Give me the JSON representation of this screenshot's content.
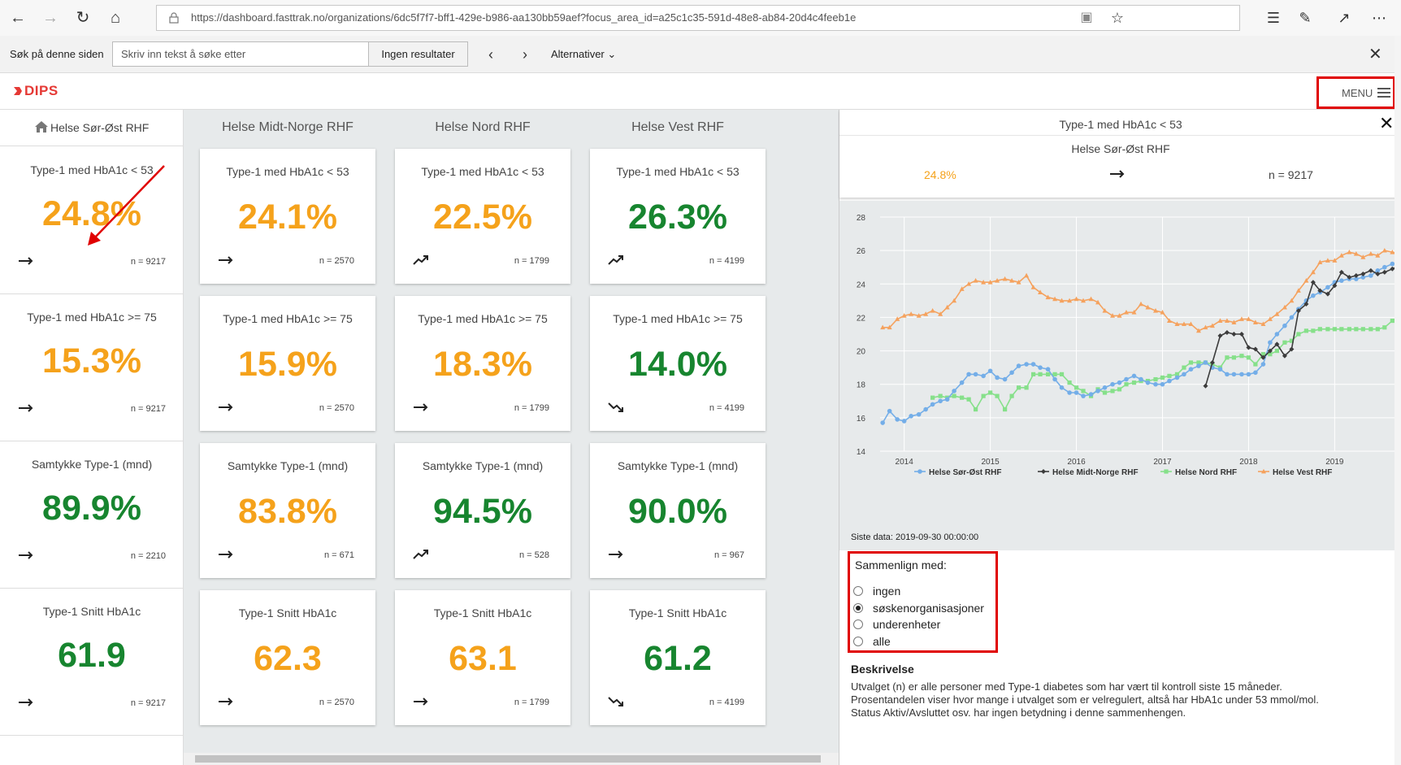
{
  "browser": {
    "url": "https://dashboard.fasttrak.no/organizations/6dc5f7f7-bff1-429e-b986-aa130bb59aef?focus_area_id=a25c1c35-591d-48e8-ab84-20d4c4feeb1e"
  },
  "find_bar": {
    "label": "Søk på denne siden",
    "placeholder": "Skriv inn tekst å søke etter",
    "result": "Ingen resultater",
    "options": "Alternativer"
  },
  "app": {
    "logo": "DIPS",
    "menu_label": "MENU"
  },
  "left_column": {
    "header": "Helse Sør-Øst RHF",
    "cards": [
      {
        "title": "Type-1 med HbA1c < 53",
        "value": "24.8%",
        "n": "n = 9217",
        "trend": "flat",
        "color": "orange"
      },
      {
        "title": "Type-1 med HbA1c >= 75",
        "value": "15.3%",
        "n": "n = 9217",
        "trend": "flat",
        "color": "orange"
      },
      {
        "title": "Samtykke Type-1 (mnd)",
        "value": "89.9%",
        "n": "n = 2210",
        "trend": "flat",
        "color": "green"
      },
      {
        "title": "Type-1 Snitt HbA1c",
        "value": "61.9",
        "n": "n = 9217",
        "trend": "flat",
        "color": "green"
      }
    ]
  },
  "columns": [
    {
      "header": "Helse Midt-Norge RHF",
      "cards": [
        {
          "title": "Type-1 med HbA1c < 53",
          "value": "24.1%",
          "n": "n = 2570",
          "trend": "flat",
          "color": "orange"
        },
        {
          "title": "Type-1 med HbA1c >= 75",
          "value": "15.9%",
          "n": "n = 2570",
          "trend": "flat",
          "color": "orange"
        },
        {
          "title": "Samtykke Type-1 (mnd)",
          "value": "83.8%",
          "n": "n = 671",
          "trend": "flat",
          "color": "orange"
        },
        {
          "title": "Type-1 Snitt HbA1c",
          "value": "62.3",
          "n": "n = 2570",
          "trend": "flat",
          "color": "orange"
        }
      ]
    },
    {
      "header": "Helse Nord RHF",
      "cards": [
        {
          "title": "Type-1 med HbA1c < 53",
          "value": "22.5%",
          "n": "n = 1799",
          "trend": "up",
          "color": "orange"
        },
        {
          "title": "Type-1 med HbA1c >= 75",
          "value": "18.3%",
          "n": "n = 1799",
          "trend": "flat",
          "color": "orange"
        },
        {
          "title": "Samtykke Type-1 (mnd)",
          "value": "94.5%",
          "n": "n = 528",
          "trend": "up",
          "color": "green"
        },
        {
          "title": "Type-1 Snitt HbA1c",
          "value": "63.1",
          "n": "n = 1799",
          "trend": "flat",
          "color": "orange"
        }
      ]
    },
    {
      "header": "Helse Vest RHF",
      "cards": [
        {
          "title": "Type-1 med HbA1c < 53",
          "value": "26.3%",
          "n": "n = 4199",
          "trend": "up",
          "color": "green"
        },
        {
          "title": "Type-1 med HbA1c >= 75",
          "value": "14.0%",
          "n": "n = 4199",
          "trend": "down",
          "color": "green"
        },
        {
          "title": "Samtykke Type-1 (mnd)",
          "value": "90.0%",
          "n": "n = 967",
          "trend": "flat",
          "color": "green"
        },
        {
          "title": "Type-1 Snitt HbA1c",
          "value": "61.2",
          "n": "n = 4199",
          "trend": "down",
          "color": "green"
        }
      ]
    }
  ],
  "detail": {
    "title": "Type-1 med HbA1c < 53",
    "subtitle": "Helse Sør-Øst RHF",
    "value": "24.8%",
    "n": "n = 9217",
    "last_data": "Siste data: 2019-09-30 00:00:00",
    "compare_label": "Sammenlign med:",
    "compare_options": [
      "ingen",
      "søskenorganisasjoner",
      "underenheter",
      "alle"
    ],
    "compare_selected": 1,
    "description_title": "Beskrivelse",
    "description": [
      "Utvalget (n) er alle personer med Type-1 diabetes som har vært til kontroll siste 15 måneder.",
      "Prosentandelen viser hvor mange i utvalget som er velregulert, altså har HbA1c under 53 mmol/mol.",
      "Status Aktiv/Avsluttet osv. har ingen betydning i denne sammenhengen."
    ]
  },
  "colors": {
    "orange": "#f5a21b",
    "green": "#17852f",
    "highlight": "#e00000"
  },
  "chart_data": {
    "type": "line",
    "x_ticks": [
      "2014",
      "2015",
      "2016",
      "2017",
      "2018",
      "2019"
    ],
    "y_ticks": [
      "14",
      "16",
      "18",
      "20",
      "22",
      "24",
      "26",
      "28"
    ],
    "ylim": [
      14,
      28
    ],
    "xlim": [
      2013.72,
      2019.78
    ],
    "grid": true,
    "legend_position": "bottom",
    "series": [
      {
        "name": "Helse Sør-Øst RHF",
        "color": "#74aee8",
        "marker": "circle",
        "x": [
          2013.75,
          2013.83,
          2013.92,
          2014.0,
          2014.08,
          2014.17,
          2014.25,
          2014.33,
          2014.42,
          2014.5,
          2014.58,
          2014.67,
          2014.75,
          2014.83,
          2014.92,
          2015.0,
          2015.08,
          2015.17,
          2015.25,
          2015.33,
          2015.42,
          2015.5,
          2015.58,
          2015.67,
          2015.75,
          2015.83,
          2015.92,
          2016.0,
          2016.08,
          2016.17,
          2016.25,
          2016.33,
          2016.42,
          2016.5,
          2016.58,
          2016.67,
          2016.75,
          2016.83,
          2016.92,
          2017.0,
          2017.08,
          2017.17,
          2017.25,
          2017.33,
          2017.42,
          2017.5,
          2017.58,
          2017.67,
          2017.75,
          2017.83,
          2017.92,
          2018.0,
          2018.08,
          2018.17,
          2018.25,
          2018.33,
          2018.42,
          2018.5,
          2018.58,
          2018.67,
          2018.75,
          2018.83,
          2018.92,
          2019.0,
          2019.08,
          2019.17,
          2019.25,
          2019.33,
          2019.42,
          2019.5,
          2019.58,
          2019.67,
          2019.75
        ],
        "y": [
          15.7,
          16.4,
          15.9,
          15.8,
          16.1,
          16.2,
          16.5,
          16.8,
          17.0,
          17.1,
          17.6,
          18.1,
          18.6,
          18.6,
          18.5,
          18.8,
          18.4,
          18.3,
          18.7,
          19.1,
          19.2,
          19.2,
          19.0,
          18.9,
          18.3,
          17.8,
          17.5,
          17.5,
          17.3,
          17.4,
          17.6,
          17.8,
          18.0,
          18.1,
          18.3,
          18.5,
          18.3,
          18.1,
          18.0,
          18.0,
          18.2,
          18.4,
          18.6,
          18.9,
          19.1,
          19.3,
          19.0,
          18.9,
          18.6,
          18.6,
          18.6,
          18.6,
          18.7,
          19.2,
          20.5,
          21.0,
          21.5,
          22.0,
          22.5,
          23.0,
          23.3,
          23.5,
          23.8,
          24.1,
          24.2,
          24.3,
          24.3,
          24.4,
          24.5,
          24.8,
          25.0,
          25.2,
          25.3
        ]
      },
      {
        "name": "Helse Midt-Norge RHF",
        "color": "#3c3c3c",
        "marker": "diamond",
        "x": [
          2017.5,
          2017.58,
          2017.67,
          2017.75,
          2017.83,
          2017.92,
          2018.0,
          2018.08,
          2018.17,
          2018.25,
          2018.33,
          2018.42,
          2018.5,
          2018.58,
          2018.67,
          2018.75,
          2018.83,
          2018.92,
          2019.0,
          2019.08,
          2019.17,
          2019.25,
          2019.33,
          2019.42,
          2019.5,
          2019.58,
          2019.67,
          2019.75
        ],
        "y": [
          17.9,
          19.3,
          20.9,
          21.1,
          21.0,
          21.0,
          20.2,
          20.1,
          19.6,
          20.0,
          20.4,
          19.7,
          20.1,
          22.4,
          22.8,
          24.1,
          23.6,
          23.4,
          23.9,
          24.7,
          24.4,
          24.5,
          24.6,
          24.8,
          24.6,
          24.7,
          24.9,
          25.1
        ]
      },
      {
        "name": "Helse Nord RHF",
        "color": "#86e08a",
        "marker": "square",
        "x": [
          2014.33,
          2014.42,
          2014.5,
          2014.58,
          2014.67,
          2014.75,
          2014.83,
          2014.92,
          2015.0,
          2015.08,
          2015.17,
          2015.25,
          2015.33,
          2015.42,
          2015.5,
          2015.58,
          2015.67,
          2015.75,
          2015.83,
          2015.92,
          2016.0,
          2016.08,
          2016.17,
          2016.25,
          2016.33,
          2016.42,
          2016.5,
          2016.58,
          2016.67,
          2016.75,
          2016.83,
          2016.92,
          2017.0,
          2017.08,
          2017.17,
          2017.25,
          2017.33,
          2017.42,
          2017.5,
          2017.58,
          2017.67,
          2017.75,
          2017.83,
          2017.92,
          2018.0,
          2018.08,
          2018.17,
          2018.25,
          2018.33,
          2018.42,
          2018.5,
          2018.58,
          2018.67,
          2018.75,
          2018.83,
          2018.92,
          2019.0,
          2019.08,
          2019.17,
          2019.25,
          2019.33,
          2019.42,
          2019.5,
          2019.58,
          2019.67,
          2019.75
        ],
        "y": [
          17.2,
          17.3,
          17.2,
          17.3,
          17.2,
          17.1,
          16.5,
          17.3,
          17.5,
          17.3,
          16.5,
          17.3,
          17.8,
          17.8,
          18.6,
          18.6,
          18.6,
          18.6,
          18.6,
          18.1,
          17.8,
          17.6,
          17.3,
          17.7,
          17.5,
          17.6,
          17.7,
          18.0,
          18.1,
          18.2,
          18.2,
          18.3,
          18.4,
          18.5,
          18.6,
          19.0,
          19.3,
          19.3,
          19.3,
          19.2,
          19.0,
          19.6,
          19.6,
          19.7,
          19.6,
          19.2,
          19.8,
          19.8,
          20.0,
          20.5,
          20.6,
          21.0,
          21.2,
          21.2,
          21.3,
          21.3,
          21.3,
          21.3,
          21.3,
          21.3,
          21.3,
          21.3,
          21.3,
          21.4,
          21.8,
          22.0
        ]
      },
      {
        "name": "Helse Vest RHF",
        "color": "#f5a25e",
        "marker": "triangle",
        "x": [
          2013.75,
          2013.83,
          2013.92,
          2014.0,
          2014.08,
          2014.17,
          2014.25,
          2014.33,
          2014.42,
          2014.5,
          2014.58,
          2014.67,
          2014.75,
          2014.83,
          2014.92,
          2015.0,
          2015.08,
          2015.17,
          2015.25,
          2015.33,
          2015.42,
          2015.5,
          2015.58,
          2015.67,
          2015.75,
          2015.83,
          2015.92,
          2016.0,
          2016.08,
          2016.17,
          2016.25,
          2016.33,
          2016.42,
          2016.5,
          2016.58,
          2016.67,
          2016.75,
          2016.83,
          2016.92,
          2017.0,
          2017.08,
          2017.17,
          2017.25,
          2017.33,
          2017.42,
          2017.5,
          2017.58,
          2017.67,
          2017.75,
          2017.83,
          2017.92,
          2018.0,
          2018.08,
          2018.17,
          2018.25,
          2018.33,
          2018.42,
          2018.5,
          2018.58,
          2018.67,
          2018.75,
          2018.83,
          2018.92,
          2019.0,
          2019.08,
          2019.17,
          2019.25,
          2019.33,
          2019.42,
          2019.5,
          2019.58,
          2019.67,
          2019.75
        ],
        "y": [
          21.4,
          21.4,
          21.9,
          22.1,
          22.2,
          22.1,
          22.2,
          22.4,
          22.2,
          22.6,
          23.0,
          23.7,
          24.0,
          24.2,
          24.1,
          24.1,
          24.2,
          24.3,
          24.2,
          24.1,
          24.5,
          23.8,
          23.5,
          23.2,
          23.1,
          23.0,
          23.0,
          23.1,
          23.0,
          23.1,
          22.9,
          22.4,
          22.1,
          22.1,
          22.3,
          22.3,
          22.8,
          22.6,
          22.4,
          22.3,
          21.8,
          21.6,
          21.6,
          21.6,
          21.2,
          21.4,
          21.5,
          21.8,
          21.8,
          21.7,
          21.9,
          21.9,
          21.7,
          21.6,
          21.9,
          22.2,
          22.6,
          23.0,
          23.6,
          24.2,
          24.7,
          25.3,
          25.4,
          25.4,
          25.7,
          25.9,
          25.8,
          25.6,
          25.8,
          25.7,
          26.0,
          25.9,
          25.8
        ]
      }
    ]
  }
}
